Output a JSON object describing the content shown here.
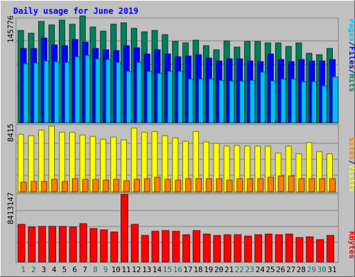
{
  "chart_data": {
    "type": "bar",
    "title": "Daily usage for June 2019",
    "categories": [
      "1",
      "2",
      "3",
      "4",
      "5",
      "6",
      "7",
      "8",
      "9",
      "10",
      "11",
      "12",
      "13",
      "14",
      "15",
      "16",
      "17",
      "18",
      "19",
      "20",
      "21",
      "22",
      "23",
      "24",
      "25",
      "26",
      "27",
      "28",
      "29",
      "30",
      "31"
    ],
    "weekend_days": [
      "1",
      "2",
      "8",
      "9",
      "15",
      "16",
      "22",
      "23",
      "29",
      "30"
    ],
    "panels": [
      {
        "id": "top",
        "max_label": "145776",
        "ylim": [
          0,
          145776
        ],
        "legend": [
          {
            "name": "Pages",
            "color": "#00C0FF"
          },
          {
            "name": "/",
            "color": "#000080"
          },
          {
            "name": "Files",
            "color": "#0000FF"
          },
          {
            "name": "/",
            "color": "#000080"
          },
          {
            "name": "Hits",
            "color": "#00805C"
          }
        ],
        "series": [
          {
            "name": "Hits",
            "color": "#00805C",
            "values": [
              128000,
              125000,
              141000,
              136000,
              143000,
              137000,
              149000,
              133000,
              127000,
              137000,
              139000,
              131000,
              126000,
              128000,
              123000,
              113000,
              111000,
              115000,
              107000,
              101000,
              114000,
              105000,
              113000,
              113000,
              111000,
              111000,
              106000,
              111000,
              97000,
              95000,
              103000
            ]
          },
          {
            "name": "Files",
            "color": "#0000FF",
            "values": [
              103000,
              103000,
              118000,
              108000,
              107000,
              116000,
              112000,
              103000,
              101000,
              100000,
              107000,
              104000,
              96000,
              101000,
              96000,
              92000,
              93000,
              95000,
              90000,
              86000,
              89000,
              89000,
              86000,
              85000,
              96000,
              88000,
              85000,
              88000,
              86000,
              86000,
              88000
            ]
          },
          {
            "name": "Pages",
            "color": "#00C0FF",
            "values": [
              82000,
              83000,
              86000,
              85000,
              84000,
              92000,
              94000,
              89000,
              88000,
              84000,
              71000,
              84000,
              71000,
              69000,
              71000,
              71000,
              61000,
              61000,
              61000,
              59000,
              58000,
              58000,
              59000,
              70000,
              58000,
              61000,
              61000,
              57000,
              57000,
              51000,
              64000
            ]
          }
        ]
      },
      {
        "id": "middle",
        "max_label": "8415",
        "ylim": [
          0,
          8415
        ],
        "legend": [
          {
            "name": "Sites",
            "color": "#FF8000"
          },
          {
            "name": "/",
            "color": "#000080"
          },
          {
            "name": "Visits",
            "color": "#FFFF00"
          }
        ],
        "series": [
          {
            "name": "Visits",
            "color": "#FFFF00",
            "values": [
              7300,
              7100,
              7800,
              8300,
              7500,
              7500,
              7200,
              7000,
              6700,
              6900,
              6600,
              8100,
              7500,
              7600,
              7100,
              6800,
              6400,
              7600,
              6300,
              6100,
              5800,
              5900,
              5800,
              5800,
              5800,
              4900,
              5800,
              4800,
              6200,
              5100,
              4800
            ]
          },
          {
            "name": "Sites",
            "color": "#FF8000",
            "values": [
              1200,
              1300,
              1300,
              1600,
              1300,
              1700,
              1600,
              1600,
              1500,
              1600,
              1400,
              1600,
              1700,
              1800,
              1600,
              1500,
              1700,
              1700,
              1700,
              1700,
              1500,
              1700,
              1700,
              1700,
              1800,
              2000,
              2000,
              1700,
              1700,
              1700,
              1700
            ]
          }
        ]
      },
      {
        "id": "bottom",
        "max_label": "8413147",
        "ylim": [
          0,
          8413147
        ],
        "legend": [
          {
            "name": "KBytes",
            "color": "#FF0000"
          }
        ],
        "series": [
          {
            "name": "KBytes",
            "color": "#FF0000",
            "values": [
              4700000,
              4300000,
              4400000,
              4400000,
              4400000,
              4300000,
              4800000,
              4200000,
              4000000,
              3700000,
              8413147,
              4700000,
              3300000,
              3800000,
              3900000,
              3800000,
              3400000,
              3900000,
              3500000,
              3300000,
              3400000,
              3400000,
              3200000,
              3400000,
              3500000,
              3400000,
              3500000,
              3000000,
              3100000,
              2800000,
              3300000
            ]
          }
        ]
      }
    ]
  }
}
